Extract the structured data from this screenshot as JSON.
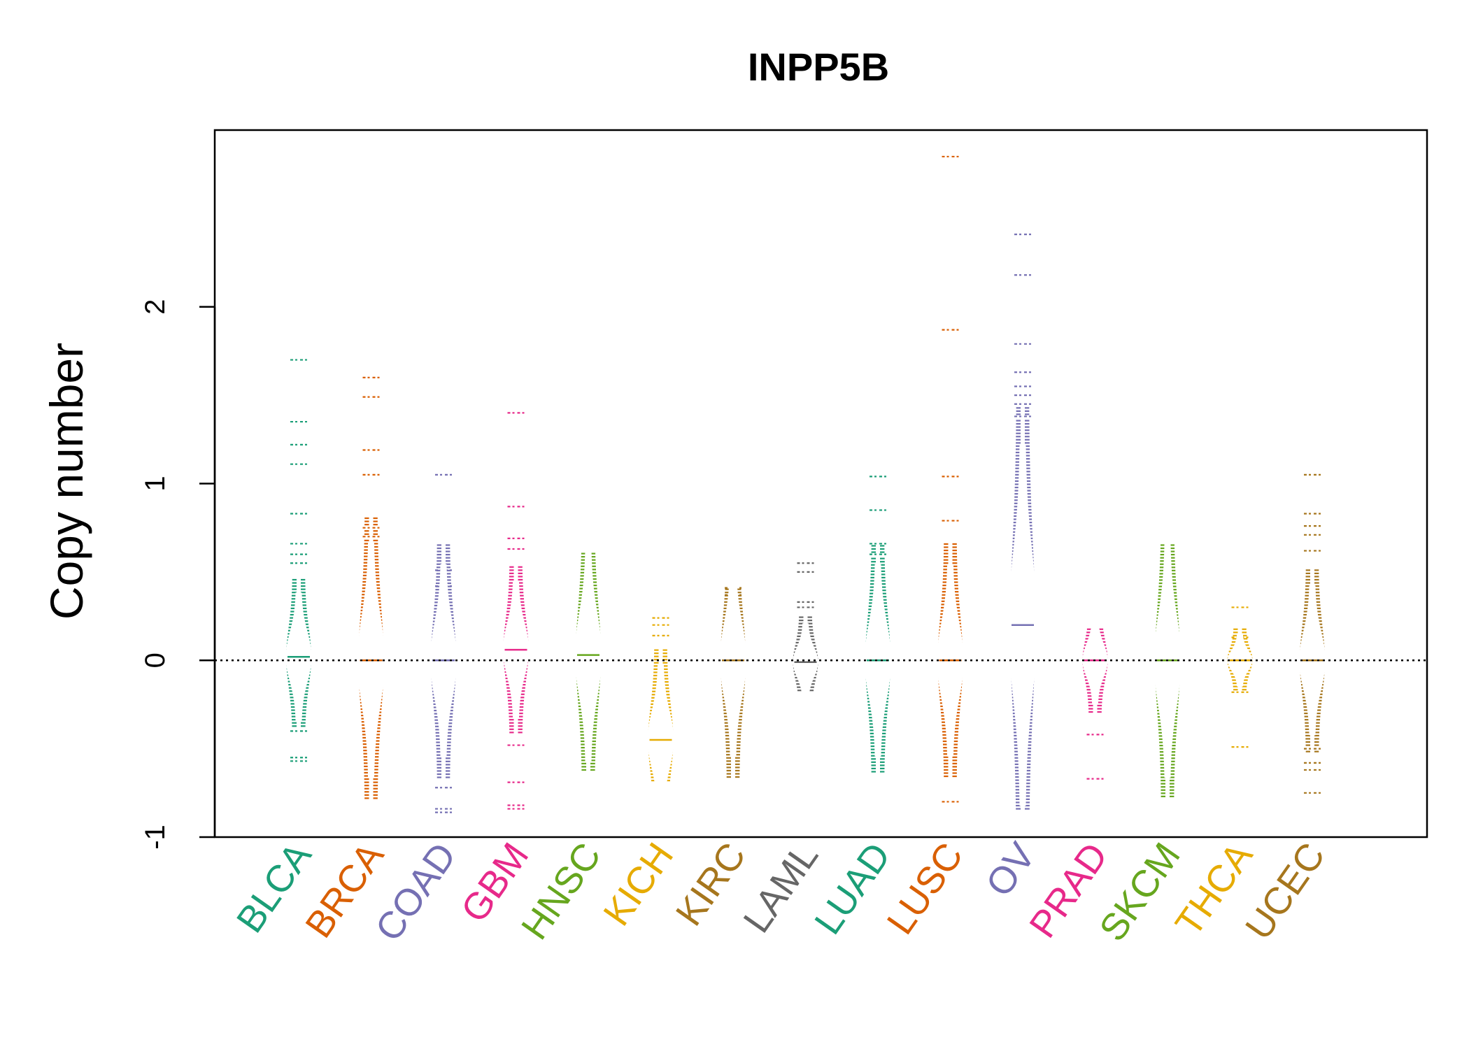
{
  "chart_data": {
    "type": "beanplot",
    "title": "INPP5B",
    "xlabel": "",
    "ylabel": "Copy number",
    "ylim": [
      -1,
      3
    ],
    "yticks": [
      -1,
      0,
      1,
      2
    ],
    "reference_line": 0,
    "grid": false,
    "legend": "none",
    "series": [
      {
        "name": "BLCA",
        "color": "#1B9E77",
        "min": -0.57,
        "max": 1.7,
        "median": 0.02,
        "spread": 0.3,
        "outliers": [
          1.7,
          1.35,
          1.22,
          1.11,
          0.83,
          0.66,
          0.6,
          0.55,
          -0.4,
          -0.55,
          -0.57
        ]
      },
      {
        "name": "BRCA",
        "color": "#D95F02",
        "min": -0.78,
        "max": 1.6,
        "median": 0.0,
        "spread": 0.55,
        "outliers": [
          1.6,
          1.49,
          1.19,
          1.05,
          0.75,
          0.7
        ]
      },
      {
        "name": "COAD",
        "color": "#7570B3",
        "min": -0.86,
        "max": 1.05,
        "median": 0.0,
        "spread": 0.45,
        "outliers": [
          1.05,
          0.51,
          0.42,
          -0.72,
          -0.84,
          -0.86
        ]
      },
      {
        "name": "GBM",
        "color": "#E7298A",
        "min": -0.84,
        "max": 1.4,
        "median": 0.06,
        "spread": 0.32,
        "outliers": [
          1.4,
          0.87,
          0.69,
          0.63,
          -0.48,
          -0.69,
          -0.82,
          -0.84
        ]
      },
      {
        "name": "HNSC",
        "color": "#66A61E",
        "min": -0.62,
        "max": 0.61,
        "median": 0.03,
        "spread": 0.5,
        "outliers": []
      },
      {
        "name": "KICH",
        "color": "#E6AB02",
        "min": -0.68,
        "max": 0.24,
        "median": -0.45,
        "spread": 0.35,
        "outliers": [
          0.24,
          0.2,
          0.14
        ]
      },
      {
        "name": "KIRC",
        "color": "#A6761D",
        "min": -0.66,
        "max": 0.41,
        "median": 0.0,
        "spread": 0.45,
        "outliers": [
          0.41,
          0.37
        ]
      },
      {
        "name": "LAML",
        "color": "#666666",
        "min": -0.17,
        "max": 0.55,
        "median": -0.01,
        "spread": 0.18,
        "outliers": [
          0.55,
          0.5,
          0.33,
          0.3
        ]
      },
      {
        "name": "LUAD",
        "color": "#1B9E77",
        "min": -0.63,
        "max": 1.04,
        "median": 0.0,
        "spread": 0.45,
        "outliers": [
          1.04,
          0.85,
          0.66,
          0.6
        ]
      },
      {
        "name": "LUSC",
        "color": "#D95F02",
        "min": -0.8,
        "max": 2.85,
        "median": 0.0,
        "spread": 0.45,
        "outliers": [
          2.85,
          1.87,
          1.04,
          0.79,
          -0.8
        ]
      },
      {
        "name": "OV",
        "color": "#7570B3",
        "min": -0.84,
        "max": 2.41,
        "median": 0.2,
        "spread": 0.85,
        "outliers": [
          2.41,
          2.18,
          1.79,
          1.63,
          1.55,
          1.5,
          1.45,
          1.38
        ]
      },
      {
        "name": "PRAD",
        "color": "#E7298A",
        "min": -0.67,
        "max": 0.19,
        "median": 0.0,
        "spread": 0.2,
        "outliers": [
          -0.42,
          -0.67
        ]
      },
      {
        "name": "SKCM",
        "color": "#66A61E",
        "min": -0.77,
        "max": 0.66,
        "median": 0.0,
        "spread": 0.55,
        "outliers": []
      },
      {
        "name": "THCA",
        "color": "#E6AB02",
        "min": -0.49,
        "max": 0.3,
        "median": 0.0,
        "spread": 0.12,
        "outliers": [
          0.3,
          0.13,
          -0.18,
          -0.49
        ]
      },
      {
        "name": "UCEC",
        "color": "#A6761D",
        "min": -0.75,
        "max": 1.05,
        "median": 0.0,
        "spread": 0.35,
        "outliers": [
          1.05,
          0.83,
          0.76,
          0.71,
          0.62,
          -0.5,
          -0.58,
          -0.62,
          -0.75
        ]
      }
    ]
  }
}
